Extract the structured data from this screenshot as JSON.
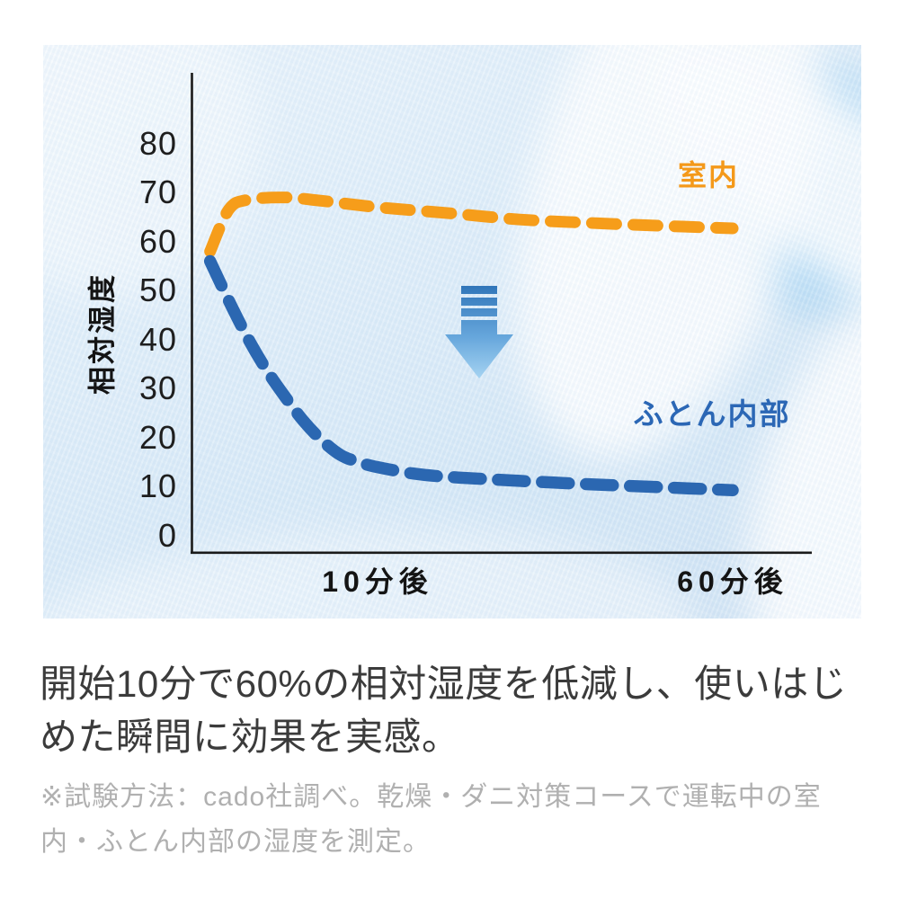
{
  "page": {
    "background": "#ffffff"
  },
  "chart_data": {
    "type": "line",
    "title": "",
    "ylabel": "相対湿度",
    "ylim": [
      0,
      80
    ],
    "y_ticks": [
      80,
      70,
      60,
      50,
      40,
      30,
      20,
      10,
      0
    ],
    "x_ticks": [
      {
        "label": "10分後",
        "minutes": 10
      },
      {
        "label": "60分後",
        "minutes": 60
      }
    ],
    "x_range_minutes": [
      0,
      60
    ],
    "grid": false,
    "legend_position": "inline-labels",
    "axis_color": "#1a1a1a",
    "series": [
      {
        "id": "indoor",
        "name": "室内",
        "color": "#f69d1a",
        "line_style": "dashed",
        "stroke_width": 13,
        "dash": "27 19",
        "points": [
          [
            1,
            58
          ],
          [
            2,
            66.5
          ],
          [
            3,
            68.5
          ],
          [
            5,
            69
          ],
          [
            7,
            68.3
          ],
          [
            10,
            67
          ],
          [
            20,
            65.8
          ],
          [
            30,
            64.5
          ],
          [
            40,
            63.8
          ],
          [
            50,
            63.2
          ],
          [
            60,
            62.7
          ]
        ]
      },
      {
        "id": "futon",
        "name": "ふとん内部",
        "color": "#2b67b1",
        "line_style": "dashed",
        "stroke_width": 13.5,
        "dash": "30 19",
        "points": [
          [
            1,
            56
          ],
          [
            2,
            48
          ],
          [
            3,
            40.5
          ],
          [
            4,
            34
          ],
          [
            5,
            28.5
          ],
          [
            6,
            23.5
          ],
          [
            7,
            19.5
          ],
          [
            8,
            16.5
          ],
          [
            9,
            15
          ],
          [
            10,
            14
          ],
          [
            15,
            12.7
          ],
          [
            20,
            12
          ],
          [
            30,
            11.2
          ],
          [
            40,
            10.5
          ],
          [
            50,
            9.9
          ],
          [
            60,
            9.3
          ]
        ]
      }
    ],
    "annotations": {
      "arrow": {
        "meaning": "humidity-drop",
        "direction": "down",
        "colors": [
          "#2f74b8",
          "#67a7dc",
          "#a9d6f3"
        ]
      }
    }
  },
  "caption": {
    "color": "#3b3b3b",
    "lines": [
      "開始10分で60%の相対湿度を低減し、使いはじ",
      "めた瞬間に効果を実感。"
    ]
  },
  "note": {
    "color": "#b0b0b0",
    "lines": [
      "※試験方法：cado社調べ。乾燥・ダニ対策コースで運転中の室",
      "内・ふとん内部の湿度を測定。"
    ]
  }
}
